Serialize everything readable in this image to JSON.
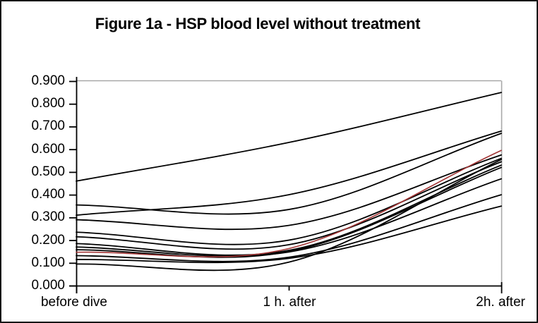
{
  "chart_data": {
    "type": "line",
    "title": "Figure 1a - HSP blood level without treatment",
    "categories": [
      "before dive",
      "1 h. after",
      "2h. after"
    ],
    "xlabel": "",
    "ylabel": "",
    "ylim": [
      0.0,
      0.9
    ],
    "y_tick_step": 0.1,
    "y_tick_labels": [
      "0.000",
      "0.100",
      "0.200",
      "0.300",
      "0.400",
      "0.500",
      "0.600",
      "0.700",
      "0.800",
      "0.900"
    ],
    "grid": false,
    "legend": false,
    "line_style": "smooth",
    "colors": {
      "series_default": "#000000",
      "series_highlight": "#A23535",
      "axis": "#000000",
      "plot_border": "#A8A8A8",
      "background": "#FFFFFF"
    },
    "series": [
      {
        "color": "#000000",
        "values": [
          0.46,
          0.63,
          0.85
        ]
      },
      {
        "color": "#000000",
        "values": [
          0.355,
          0.335,
          0.67
        ]
      },
      {
        "color": "#000000",
        "values": [
          0.31,
          0.4,
          0.68
        ]
      },
      {
        "color": "#000000",
        "values": [
          0.29,
          0.265,
          0.575
        ]
      },
      {
        "color": "#000000",
        "values": [
          0.235,
          0.2,
          0.56
        ]
      },
      {
        "color": "#000000",
        "values": [
          0.215,
          0.18,
          0.545
        ]
      },
      {
        "color": "#000000",
        "values": [
          0.185,
          0.155,
          0.53
        ]
      },
      {
        "color": "#000000",
        "values": [
          0.17,
          0.148,
          0.47
        ]
      },
      {
        "color": "#000000",
        "values": [
          0.158,
          0.15,
          0.52
        ]
      },
      {
        "color": "#A23535",
        "values": [
          0.147,
          0.163,
          0.595
        ]
      },
      {
        "color": "#000000",
        "values": [
          0.132,
          0.125,
          0.4
        ]
      },
      {
        "color": "#000000",
        "values": [
          0.115,
          0.12,
          0.35
        ]
      },
      {
        "color": "#000000",
        "values": [
          0.095,
          0.103,
          0.555
        ]
      }
    ]
  }
}
